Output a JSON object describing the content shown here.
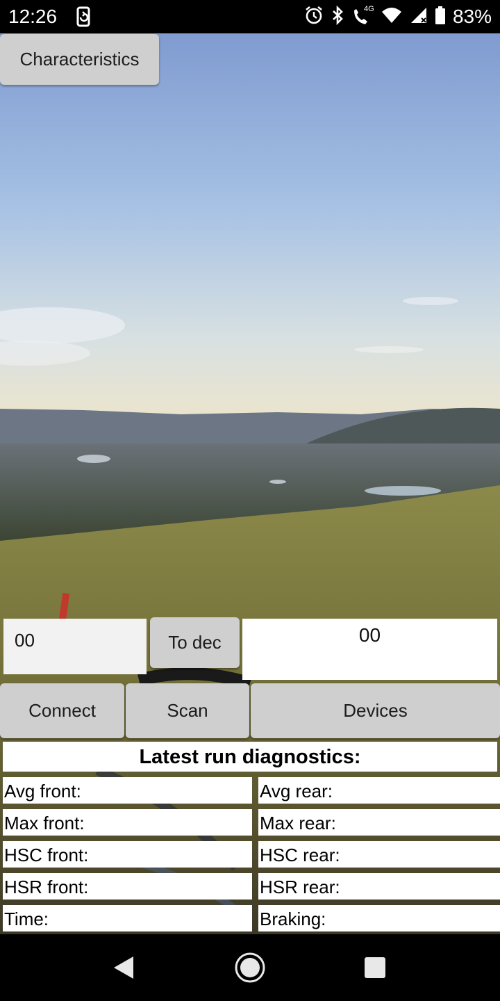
{
  "status_bar": {
    "time": "12:26",
    "battery_percent": "83%",
    "network_badge": "4G",
    "icons": [
      "screen-rotate-icon",
      "alarm-icon",
      "bluetooth-icon",
      "volte-call-icon",
      "wifi-icon",
      "cell-signal-icon",
      "battery-icon"
    ]
  },
  "toolbar": {
    "characteristics_label": "Characteristics"
  },
  "converter": {
    "hex_value": "00",
    "to_dec_label": "To dec",
    "dec_result": "00"
  },
  "actions": {
    "connect_label": "Connect",
    "scan_label": "Scan",
    "devices_label": "Devices"
  },
  "diagnostics": {
    "title": "Latest run diagnostics:",
    "avg_front": "Avg front:",
    "avg_rear": "Avg rear:",
    "max_front": "Max front:",
    "max_rear": "Max rear:",
    "hsc_front": "HSC front:",
    "hsc_rear": "HSC rear:",
    "hsr_front": "HSR front:",
    "hsr_rear": "HSR rear:",
    "time": "Time:",
    "braking": "Braking:"
  },
  "nav_bar": {
    "icons": [
      "back-icon",
      "home-icon",
      "recents-icon"
    ]
  },
  "colors": {
    "button_bg": "#cfcfcf",
    "sky_top": "#7f9bd0",
    "sky_horizon": "#e8e4d0",
    "grass": "#7a7a3a"
  }
}
